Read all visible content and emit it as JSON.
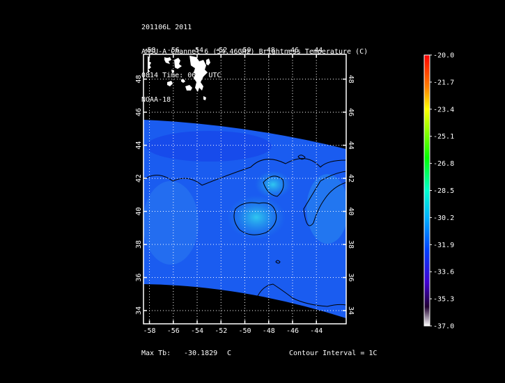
{
  "header": {
    "line1": "201106L 2011",
    "line2": "AMSU-A Channel 6 (54.46GHz) Brightness Temperature (C)",
    "line3": "0814 Time: 0605 UTC",
    "line4": "NOAA-18"
  },
  "map": {
    "lon_ticks": [
      "-58",
      "-56",
      "-54",
      "-52",
      "-50",
      "-48",
      "-46",
      "-44"
    ],
    "lat_ticks": [
      "48",
      "46",
      "44",
      "42",
      "40",
      "38",
      "36",
      "34"
    ],
    "lon_range": [
      -58.5,
      -41.5
    ],
    "lat_range": [
      33.2,
      49.5
    ],
    "grid": "dotted",
    "colors": {
      "ocean_field": "#1a5df0",
      "land_coast": "#ffffff",
      "frame": "#ffffff"
    }
  },
  "colorbar": {
    "labels": [
      "-20.0",
      "-21.7",
      "-23.4",
      "-25.1",
      "-26.8",
      "-28.5",
      "-30.2",
      "-31.9",
      "-33.6",
      "-35.3",
      "-37.0"
    ],
    "colors": [
      "#ff0000",
      "#ff8000",
      "#ffff00",
      "#00ff00",
      "#00ffcc",
      "#00b0ff",
      "#0040ff",
      "#4000d0",
      "#200030",
      "#ffffff"
    ]
  },
  "footer": {
    "max_label": "Max Tb:",
    "max_value": "-30.1829",
    "max_unit": "C",
    "contour_label": "Contour Interval = 1C"
  }
}
